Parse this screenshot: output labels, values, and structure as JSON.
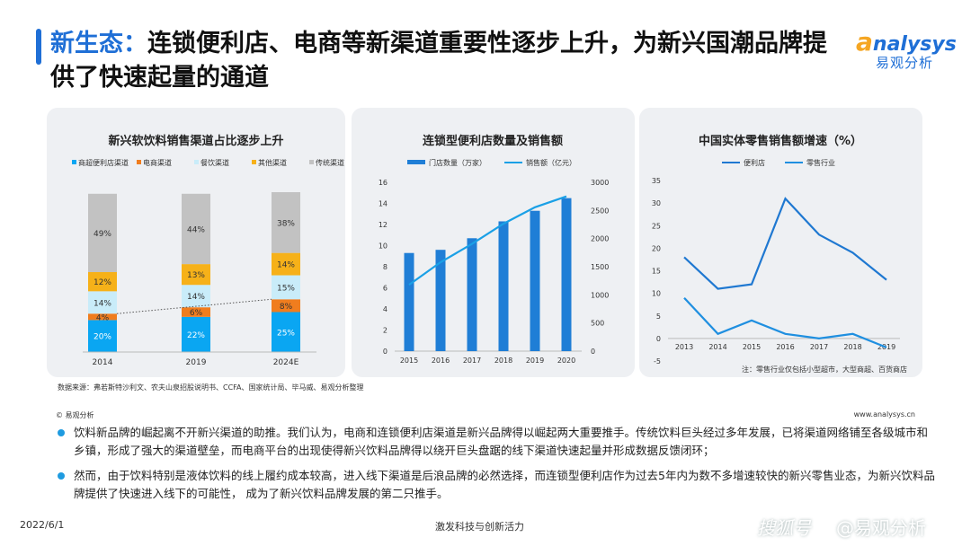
{
  "header": {
    "title_highlight": "新生态：",
    "title_rest": "连锁便利店、电商等新渠道重要性逐步上升，为新兴国潮品牌提供了快速起量的通道",
    "logo_en_a": "a",
    "logo_en_rest": "nalysys",
    "logo_cn": "易观分析"
  },
  "colors": {
    "accent": "#1f6fd6",
    "bar_blue": "#1f7ed6",
    "bullet_dot": "#1f9be0"
  },
  "chart_data": [
    {
      "type": "bar",
      "stacked": true,
      "title": "新兴软饮料销售渠道占比逐步上升",
      "categories": [
        "2014",
        "2019",
        "2024E"
      ],
      "legend_position": "top",
      "series": [
        {
          "name": "商超便利店渠道",
          "color": "#0aa6f2",
          "values": [
            20,
            22,
            25
          ]
        },
        {
          "name": "电商渠道",
          "color": "#f07d1e",
          "values": [
            4,
            6,
            8
          ]
        },
        {
          "name": "餐饮渠道",
          "color": "#c9ecf9",
          "values": [
            14,
            14,
            15
          ]
        },
        {
          "name": "其他渠道",
          "color": "#f6b119",
          "values": [
            12,
            13,
            14
          ]
        },
        {
          "name": "传统渠道",
          "color": "#c2c2c2",
          "values": [
            49,
            44,
            38
          ]
        }
      ],
      "value_suffix": "%",
      "ylim": [
        0,
        100
      ]
    },
    {
      "type": "bar+line",
      "title": "连锁型便利店数量及销售额",
      "categories": [
        "2015",
        "2016",
        "2017",
        "2018",
        "2019",
        "2020"
      ],
      "legend_position": "top",
      "series": [
        {
          "name": "门店数量（万家）",
          "type": "bar",
          "color": "#1f7ed6",
          "axis": "left",
          "values": [
            9.3,
            9.6,
            10.7,
            12.3,
            13.3,
            14.5
          ]
        },
        {
          "name": "销售额（亿元）",
          "type": "line",
          "color": "#1aa0e6",
          "axis": "right",
          "values": [
            1180,
            1580,
            1905,
            2264,
            2556,
            2750
          ]
        }
      ],
      "y_left": {
        "ticks": [
          0,
          2,
          4,
          6,
          8,
          10,
          12,
          14,
          16
        ],
        "ylim": [
          0,
          16
        ]
      },
      "y_right": {
        "ticks": [
          0,
          500,
          1000,
          1500,
          2000,
          2500,
          3000
        ],
        "ylim": [
          0,
          3000
        ]
      }
    },
    {
      "type": "line",
      "title": "中国实体零售销售额增速（%）",
      "categories": [
        "2013",
        "2014",
        "2015",
        "2016",
        "2017",
        "2018",
        "2019"
      ],
      "legend_position": "top",
      "series": [
        {
          "name": "便利店",
          "color": "#1f78d1",
          "values": [
            18,
            11,
            12,
            31,
            23,
            19,
            13
          ]
        },
        {
          "name": "零售行业",
          "color": "#1f8fe0",
          "values": [
            9,
            1,
            4,
            1,
            0,
            1,
            -2
          ]
        }
      ],
      "y_ticks": [
        35,
        30,
        25,
        20,
        15,
        10,
        5,
        0,
        -5
      ],
      "ylim": [
        -5,
        35
      ],
      "note": "注：零售行业仅包括小型超市，大型商超、百货商店"
    }
  ],
  "footer": {
    "source": "数据来源：弗若斯特沙利文、农夫山泉招股说明书、CCFA、国家统计局、毕马威、易观分析整理",
    "copyright": "© 易观分析",
    "site": "www.analysys.cn",
    "bullets": [
      "饮料新品牌的崛起离不开新兴渠道的助推。我们认为，电商和连锁便利店渠道是新兴品牌得以崛起两大重要推手。传统饮料巨头经过多年发展，已将渠道网络铺至各级城市和乡镇，形成了强大的渠道壁垒，而电商平台的出现使得新兴饮料品牌得以绕开巨头盘踞的线下渠道快速起量并形成数据反馈闭环；",
      "然而，由于饮料特别是液体饮料的线上履约成本较高，进入线下渠道是后浪品牌的必然选择，而连锁型便利店作为过去5年内为数不多增速较快的新兴零售业态，为新兴饮料品牌提供了快速进入线下的可能性， 成为了新兴饮料品牌发展的第二只推手。"
    ],
    "date": "2022/6/1",
    "slogan": "激发科技与创新活力",
    "watermark_1": "搜狐号",
    "watermark_2": "@易观分析"
  }
}
